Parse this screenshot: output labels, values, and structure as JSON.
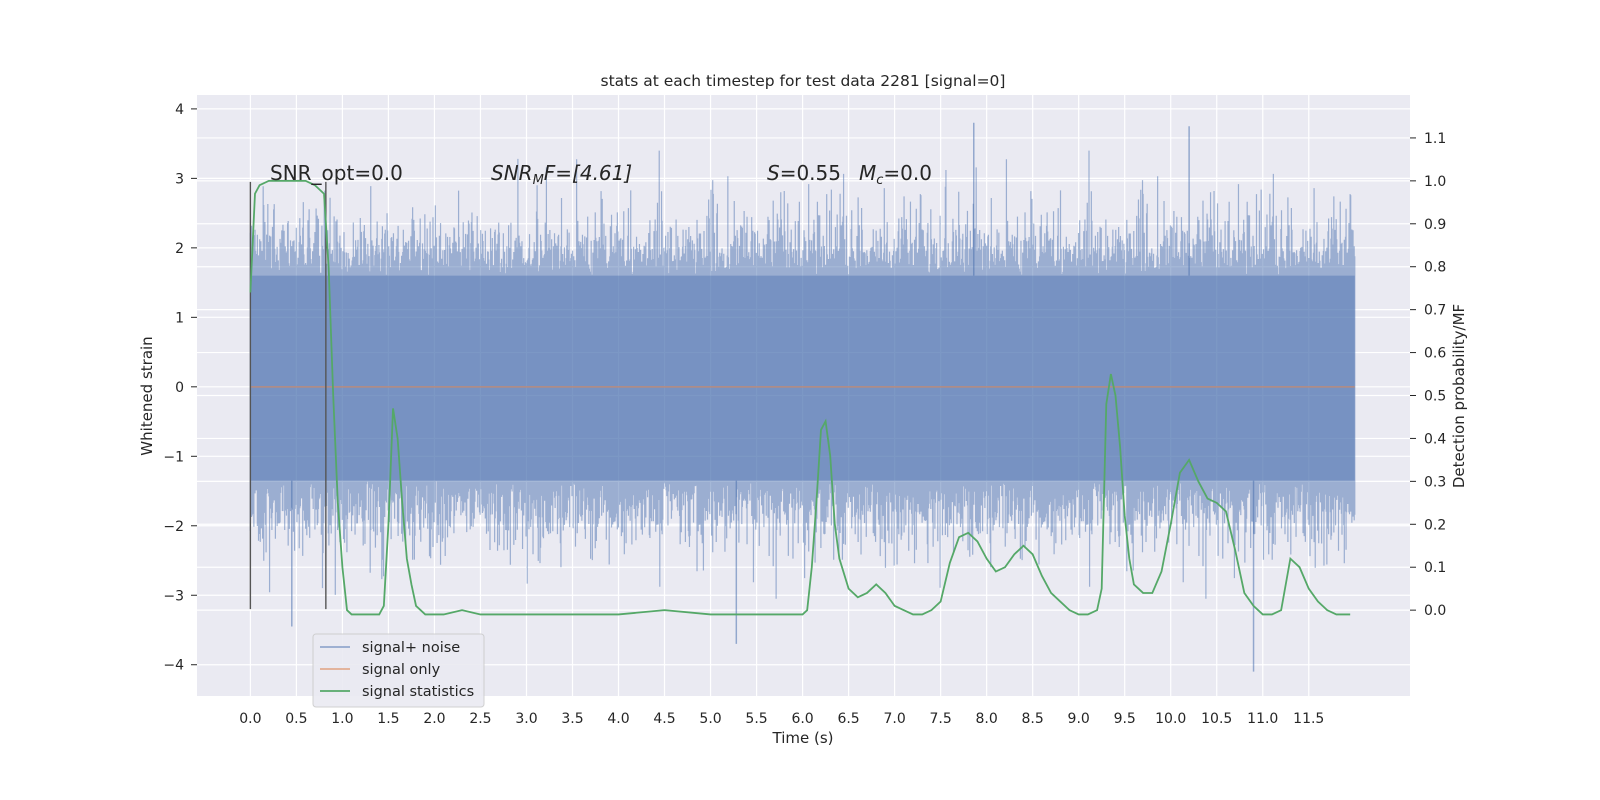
{
  "chart_data": {
    "type": "line",
    "title": "stats at each timestep for test data 2281 [signal=0]",
    "xlabel": "Time (s)",
    "ylabel": "Whitened strain",
    "y2label": "Detection probability/MF",
    "xlim": [
      -0.58,
      12.6
    ],
    "ylim": [
      -4.45,
      4.2
    ],
    "y2lim": [
      -0.2,
      1.2
    ],
    "x_ticks": [
      "0.0",
      "0.5",
      "1.0",
      "1.5",
      "2.0",
      "2.5",
      "3.0",
      "3.5",
      "4.0",
      "4.5",
      "5.0",
      "5.5",
      "6.0",
      "6.5",
      "7.0",
      "7.5",
      "8.0",
      "8.5",
      "9.0",
      "9.5",
      "10.0",
      "10.5",
      "11.0",
      "11.5"
    ],
    "y_ticks": [
      "4",
      "3",
      "2",
      "1",
      "0",
      "−1",
      "−2",
      "−3",
      "−4"
    ],
    "y2_ticks": [
      "1.1",
      "1.0",
      "0.9",
      "0.8",
      "0.7",
      "0.6",
      "0.5",
      "0.4",
      "0.3",
      "0.2",
      "0.1",
      "0.0"
    ],
    "grid": true,
    "legend_position": "lower-left",
    "annotations": {
      "snr_opt": "SNR_opt=0.0",
      "snr_mf_sym": "SNR",
      "snr_mf_sub": "M",
      "snr_mf_tail": "F=[4.61]",
      "s_sym": "S",
      "s_val": "=0.55",
      "mc_sym": "M",
      "mc_sub": "c",
      "mc_val": "=0.0"
    },
    "vertical_lines_x": [
      0.0,
      0.82
    ],
    "series": [
      {
        "name": "signal+ noise",
        "color": "#4c72b0",
        "t_range": [
          0.0,
          12.0
        ],
        "band_low": -1.35,
        "band_high": 1.6,
        "extremes": {
          "max": 3.8,
          "min": -4.1
        }
      },
      {
        "name": "signal only",
        "color": "#dd8452",
        "x": [
          0.0,
          12.0
        ],
        "y": [
          0.0,
          0.0
        ]
      },
      {
        "name": "signal statistics",
        "color": "#55a868",
        "axis": "right",
        "x": [
          0.0,
          0.05,
          0.1,
          0.2,
          0.3,
          0.4,
          0.5,
          0.6,
          0.7,
          0.8,
          0.85,
          0.9,
          0.95,
          1.0,
          1.05,
          1.1,
          1.2,
          1.3,
          1.4,
          1.45,
          1.5,
          1.55,
          1.6,
          1.65,
          1.7,
          1.75,
          1.8,
          1.9,
          2.0,
          2.1,
          2.3,
          2.5,
          3.0,
          3.5,
          4.0,
          4.5,
          5.0,
          5.5,
          6.0,
          6.05,
          6.1,
          6.15,
          6.2,
          6.25,
          6.3,
          6.35,
          6.4,
          6.5,
          6.6,
          6.7,
          6.8,
          6.9,
          7.0,
          7.1,
          7.2,
          7.3,
          7.4,
          7.5,
          7.6,
          7.7,
          7.8,
          7.9,
          8.0,
          8.1,
          8.2,
          8.3,
          8.4,
          8.5,
          8.6,
          8.7,
          8.8,
          8.9,
          9.0,
          9.1,
          9.2,
          9.25,
          9.3,
          9.35,
          9.4,
          9.45,
          9.5,
          9.55,
          9.6,
          9.7,
          9.8,
          9.9,
          10.0,
          10.1,
          10.2,
          10.3,
          10.4,
          10.5,
          10.6,
          10.7,
          10.8,
          10.9,
          11.0,
          11.1,
          11.2,
          11.3,
          11.4,
          11.5,
          11.6,
          11.7,
          11.8,
          11.9,
          11.95
        ],
        "y": [
          0.74,
          0.97,
          0.99,
          1.0,
          1.0,
          1.0,
          1.0,
          1.0,
          0.99,
          0.97,
          0.8,
          0.5,
          0.25,
          0.1,
          0.0,
          -0.01,
          -0.01,
          -0.01,
          -0.01,
          0.01,
          0.2,
          0.47,
          0.4,
          0.25,
          0.12,
          0.06,
          0.01,
          -0.01,
          -0.01,
          -0.01,
          0.0,
          -0.01,
          -0.01,
          -0.01,
          -0.01,
          0.0,
          -0.01,
          -0.01,
          -0.01,
          0.0,
          0.1,
          0.25,
          0.42,
          0.44,
          0.36,
          0.2,
          0.12,
          0.05,
          0.03,
          0.04,
          0.06,
          0.04,
          0.01,
          0.0,
          -0.01,
          -0.01,
          0.0,
          0.02,
          0.11,
          0.17,
          0.18,
          0.16,
          0.12,
          0.09,
          0.1,
          0.13,
          0.15,
          0.13,
          0.08,
          0.04,
          0.02,
          0.0,
          -0.01,
          -0.01,
          0.0,
          0.05,
          0.48,
          0.55,
          0.5,
          0.38,
          0.22,
          0.12,
          0.06,
          0.04,
          0.04,
          0.09,
          0.2,
          0.32,
          0.35,
          0.3,
          0.26,
          0.25,
          0.23,
          0.14,
          0.04,
          0.01,
          -0.01,
          -0.01,
          0.0,
          0.12,
          0.1,
          0.05,
          0.02,
          0.0,
          -0.01,
          -0.01,
          -0.01
        ]
      }
    ]
  }
}
